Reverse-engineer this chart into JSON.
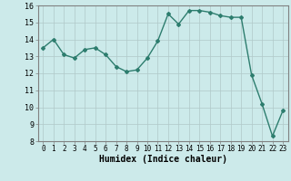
{
  "x": [
    0,
    1,
    2,
    3,
    4,
    5,
    6,
    7,
    8,
    9,
    10,
    11,
    12,
    13,
    14,
    15,
    16,
    17,
    18,
    19,
    20,
    21,
    22,
    23
  ],
  "y": [
    13.5,
    14.0,
    13.1,
    12.9,
    13.4,
    13.5,
    13.1,
    12.4,
    12.1,
    12.2,
    12.9,
    13.9,
    15.5,
    14.9,
    15.7,
    15.7,
    15.6,
    15.4,
    15.3,
    15.3,
    11.9,
    10.2,
    8.3,
    9.8
  ],
  "xlabel": "Humidex (Indice chaleur)",
  "ylim": [
    8,
    16
  ],
  "xlim_min": -0.5,
  "xlim_max": 23.5,
  "yticks": [
    8,
    9,
    10,
    11,
    12,
    13,
    14,
    15,
    16
  ],
  "xticks": [
    0,
    1,
    2,
    3,
    4,
    5,
    6,
    7,
    8,
    9,
    10,
    11,
    12,
    13,
    14,
    15,
    16,
    17,
    18,
    19,
    20,
    21,
    22,
    23
  ],
  "line_color": "#2d7d6e",
  "marker": "D",
  "marker_size": 2.0,
  "line_width": 1.0,
  "bg_color": "#cceaea",
  "grid_color": "#b0c8c8",
  "xlabel_fontsize": 7,
  "tick_fontsize": 5.5,
  "ytick_fontsize": 6
}
